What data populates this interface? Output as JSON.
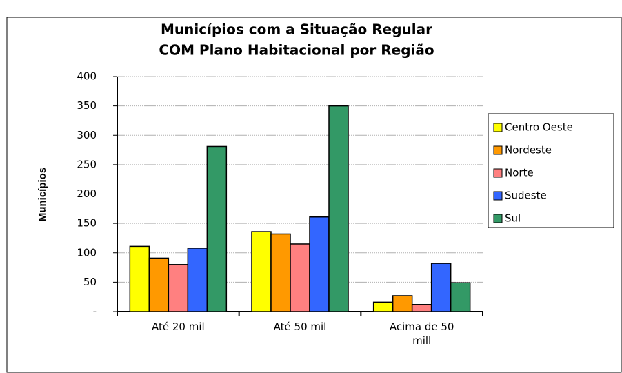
{
  "chart_data": {
    "type": "bar",
    "title": [
      "Municípios com a Situação Regular",
      "COM Plano Habitacional por Região"
    ],
    "y_label": "Municípios",
    "categories": [
      "Até 20 mil",
      "Até 50 mil",
      "Acima de 50 mill"
    ],
    "series": [
      {
        "name": "Centro Oeste",
        "color": "#ffff00",
        "values": [
          111,
          136,
          16
        ]
      },
      {
        "name": "Nordeste",
        "color": "#ff9900",
        "values": [
          91,
          132,
          27
        ]
      },
      {
        "name": "Norte",
        "color": "#ff8080",
        "values": [
          80,
          115,
          12
        ]
      },
      {
        "name": "Sudeste",
        "color": "#3366ff",
        "values": [
          108,
          161,
          82
        ]
      },
      {
        "name": "Sul",
        "color": "#339966",
        "values": [
          281,
          350,
          49
        ]
      }
    ],
    "ylim": [
      0,
      400
    ],
    "yticks": [
      {
        "value": 0,
        "label": "-"
      },
      50,
      100,
      150,
      200,
      250,
      300,
      350,
      400
    ],
    "grid": true,
    "legend": "right"
  }
}
